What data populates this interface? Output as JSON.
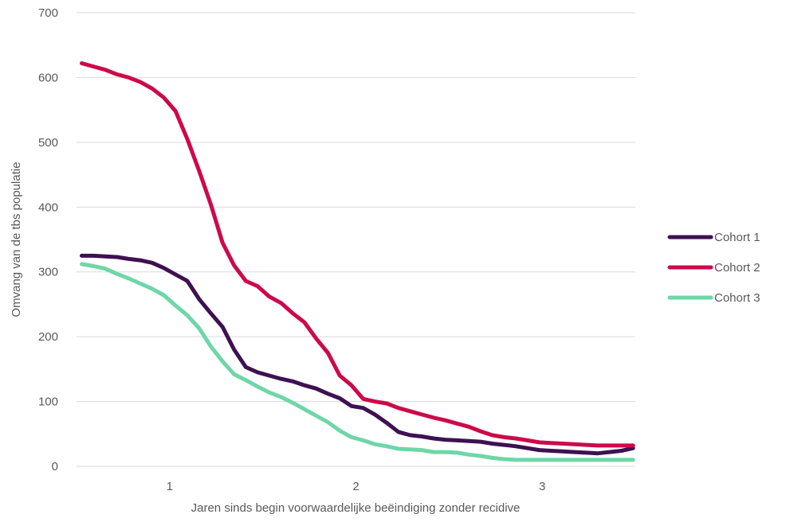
{
  "chart_data": {
    "type": "line",
    "title": "",
    "xlabel": "Jaren sinds begin voorwaardelijke beëindiging zonder recidive",
    "ylabel": "Omvang van de tbs populatie",
    "ylim": [
      0,
      700
    ],
    "yticks": [
      "0",
      "100",
      "200",
      "300",
      "400",
      "500",
      "600",
      "700"
    ],
    "xtick_labels": [
      "1",
      "2",
      "3"
    ],
    "xlim": [
      0.5,
      3.5
    ],
    "grid": true,
    "legend_position": "right",
    "series": [
      {
        "name": "Cohort 1",
        "color": "#3d1152",
        "x": [
          0.528,
          0.591,
          0.654,
          0.717,
          0.78,
          0.843,
          0.906,
          0.969,
          1.032,
          1.095,
          1.158,
          1.221,
          1.284,
          1.346,
          1.409,
          1.472,
          1.535,
          1.598,
          1.661,
          1.724,
          1.787,
          1.85,
          1.913,
          1.976,
          2.039,
          2.102,
          2.165,
          2.228,
          2.291,
          2.354,
          2.417,
          2.48,
          2.543,
          2.606,
          2.669,
          2.732,
          2.795,
          2.858,
          2.921,
          2.984,
          3.047,
          3.11,
          3.173,
          3.236,
          3.299,
          3.362,
          3.425,
          3.488
        ],
        "y": [
          325,
          325,
          324,
          323,
          320,
          318,
          314,
          306,
          296,
          286,
          258,
          236,
          215,
          180,
          153,
          145,
          140,
          135,
          131,
          125,
          120,
          112,
          105,
          93,
          90,
          80,
          67,
          53,
          48,
          46,
          43,
          41,
          40,
          39,
          38,
          35,
          33,
          31,
          28,
          25,
          24,
          23,
          22,
          21,
          20,
          22,
          24,
          28
        ]
      },
      {
        "name": "Cohort 2",
        "color": "#cc0a4a",
        "x": [
          0.528,
          0.591,
          0.654,
          0.717,
          0.78,
          0.843,
          0.906,
          0.969,
          1.032,
          1.095,
          1.158,
          1.221,
          1.284,
          1.346,
          1.409,
          1.472,
          1.535,
          1.598,
          1.661,
          1.724,
          1.787,
          1.85,
          1.913,
          1.976,
          2.039,
          2.102,
          2.165,
          2.228,
          2.291,
          2.354,
          2.417,
          2.48,
          2.543,
          2.606,
          2.669,
          2.732,
          2.795,
          2.858,
          2.921,
          2.984,
          3.047,
          3.11,
          3.173,
          3.236,
          3.299,
          3.362,
          3.425,
          3.488
        ],
        "y": [
          622,
          617,
          612,
          605,
          600,
          593,
          583,
          569,
          548,
          505,
          456,
          404,
          345,
          310,
          286,
          278,
          262,
          252,
          236,
          222,
          197,
          175,
          140,
          125,
          104,
          100,
          97,
          90,
          85,
          80,
          75,
          71,
          66,
          61,
          54,
          48,
          45,
          43,
          40,
          37,
          36,
          35,
          34,
          33,
          32,
          32,
          32,
          32
        ]
      },
      {
        "name": "Cohort 3",
        "color": "#6fd6a8",
        "x": [
          0.528,
          0.591,
          0.654,
          0.717,
          0.78,
          0.843,
          0.906,
          0.969,
          1.032,
          1.095,
          1.158,
          1.221,
          1.284,
          1.346,
          1.409,
          1.472,
          1.535,
          1.598,
          1.661,
          1.724,
          1.787,
          1.85,
          1.913,
          1.976,
          2.039,
          2.102,
          2.165,
          2.228,
          2.291,
          2.354,
          2.417,
          2.48,
          2.543,
          2.606,
          2.669,
          2.732,
          2.795,
          2.858,
          2.921,
          2.984,
          3.047,
          3.11,
          3.173,
          3.236,
          3.299,
          3.362,
          3.425,
          3.488
        ],
        "y": [
          312,
          309,
          305,
          297,
          290,
          282,
          274,
          264,
          248,
          233,
          213,
          185,
          162,
          142,
          133,
          123,
          114,
          107,
          98,
          88,
          78,
          68,
          55,
          45,
          40,
          34,
          31,
          27,
          26,
          25,
          22,
          22,
          21,
          18,
          16,
          13,
          11,
          10,
          10,
          10,
          10,
          10,
          10,
          10,
          10,
          10,
          10,
          10
        ]
      }
    ]
  }
}
